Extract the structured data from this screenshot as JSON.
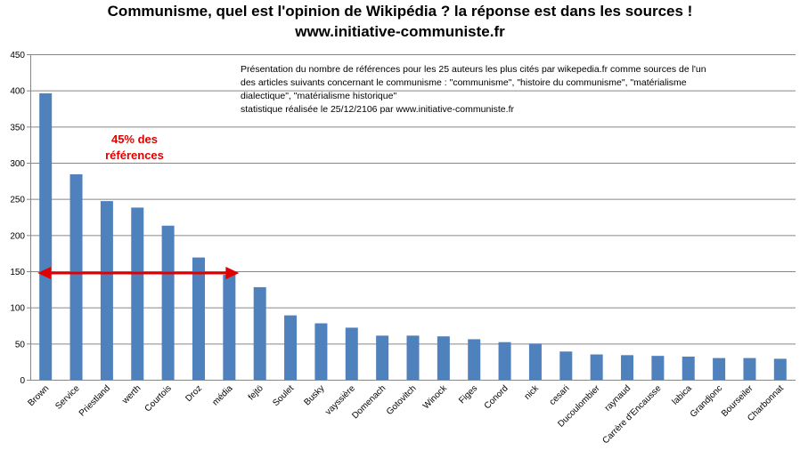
{
  "header": {
    "title": "Communisme, quel est l'opinion de Wikipédia ? la réponse est dans les sources !",
    "subtitle": "www.initiative-communiste.fr"
  },
  "annotation": {
    "lines": [
      "Présentation  du nombre de références  pour  les 25 auteurs  les plus cités par wikepedia.fr  comme sources  de l'un",
      "des articles suivants  concernant  le communisme  : \"communisme\",  \"histoire du communisme\",  \"matérialisme",
      "dialectique\",  \"matérialisme historique\"",
      "statistique réalisée  le 25/12/2106  par www.initiative-communiste.fr"
    ],
    "highlight_line1": "45% des",
    "highlight_line2": "références",
    "highlight_color": "#e00000",
    "arrow_from_category": "Brown",
    "arrow_to_category": "média",
    "arrow_level": 150
  },
  "chart_data": {
    "type": "bar",
    "title": "Communisme, quel est l'opinion de Wikipédia ? la réponse est dans les sources !",
    "xlabel": "",
    "ylabel": "",
    "ylim": [
      0,
      450
    ],
    "yticks": [
      0,
      50,
      100,
      150,
      200,
      250,
      300,
      350,
      400,
      450
    ],
    "grid": true,
    "bar_color": "#4f81bd",
    "categories": [
      "Brown",
      "Service",
      "Priestland",
      "werth",
      "Courtois",
      "Droz",
      "média",
      "fejtö",
      "Soulet",
      "Busky",
      "vayssière",
      "Domenach",
      "Gotovitch",
      "Winock",
      "Figes",
      "Conord",
      "nick",
      "cesari",
      "Ducoulombier",
      "raynaud",
      "Carrère d'Encausse",
      "labica",
      "Grandjonc",
      "Bourseiler",
      "Charbonnat"
    ],
    "values": [
      396,
      284,
      247,
      238,
      213,
      169,
      145,
      128,
      89,
      78,
      72,
      61,
      61,
      60,
      56,
      52,
      50,
      39,
      35,
      34,
      33,
      32,
      30,
      30,
      29
    ]
  }
}
